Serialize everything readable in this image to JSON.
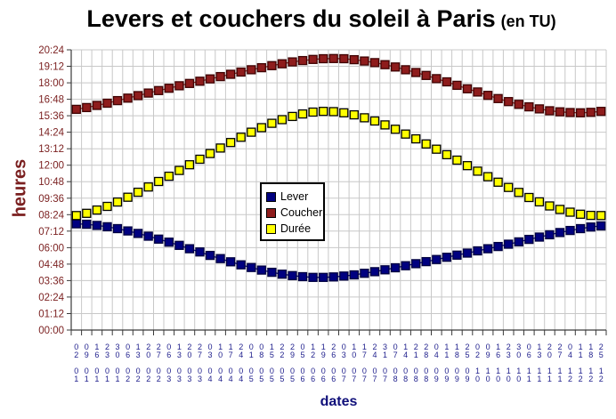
{
  "title": {
    "main": "Levers et couchers du soleil à Paris",
    "suffix": "(en TU)"
  },
  "colors": {
    "background": "#ffffff",
    "grid": "#c8c8c8",
    "axis": "#3a3a3a",
    "y_text": "#7a1f1f",
    "x_text": "#22228e",
    "lever": "#000080",
    "coucher": "#8e1c1c",
    "duree": "#ffff00"
  },
  "chart_data": {
    "type": "scatter",
    "title": "Levers et couchers du soleil à Paris (en TU)",
    "xlabel": "dates",
    "ylabel": "heures",
    "ylim": [
      "00:00",
      "20:24"
    ],
    "grid": true,
    "legend_position": "center",
    "y_ticks": [
      "20:24",
      "19:12",
      "18:00",
      "16:48",
      "15:36",
      "14:24",
      "13:12",
      "12:00",
      "10:48",
      "09:36",
      "08:24",
      "07:12",
      "06:00",
      "04:48",
      "03:36",
      "02:24",
      "01:12",
      "00:00"
    ],
    "categories": [
      "02/01",
      "09/01",
      "16/01",
      "23/01",
      "30/01",
      "06/02",
      "13/02",
      "20/02",
      "27/02",
      "06/03",
      "13/03",
      "20/03",
      "27/03",
      "03/04",
      "10/04",
      "17/04",
      "24/04",
      "01/05",
      "08/05",
      "15/05",
      "22/05",
      "29/05",
      "05/06",
      "12/06",
      "19/06",
      "26/06",
      "03/07",
      "10/07",
      "17/07",
      "24/07",
      "31/07",
      "07/08",
      "14/08",
      "21/08",
      "28/08",
      "04/09",
      "11/09",
      "18/09",
      "25/09",
      "02/10",
      "09/10",
      "16/10",
      "23/10",
      "30/10",
      "06/11",
      "13/11",
      "20/11",
      "27/11",
      "04/12",
      "11/12",
      "18/12",
      "25/12"
    ],
    "series": [
      {
        "name": "Lever",
        "color": "#000080",
        "border": "#000040",
        "line": true,
        "values": [
          "07:44",
          "07:42",
          "07:37",
          "07:31",
          "07:23",
          "07:13",
          "07:02",
          "06:50",
          "06:37",
          "06:24",
          "06:10",
          "05:55",
          "05:41",
          "05:26",
          "05:12",
          "04:58",
          "04:45",
          "04:33",
          "04:22",
          "04:12",
          "04:04",
          "03:58",
          "03:53",
          "03:50",
          "03:50",
          "03:52",
          "03:56",
          "04:01",
          "04:08",
          "04:15",
          "04:23",
          "04:32",
          "04:41",
          "04:50",
          "04:59",
          "05:08",
          "05:18",
          "05:27",
          "05:36",
          "05:46",
          "05:55",
          "06:05",
          "06:15",
          "06:25",
          "06:36",
          "06:46",
          "06:56",
          "07:06",
          "07:15",
          "07:23",
          "07:30",
          "07:35"
        ]
      },
      {
        "name": "Coucher",
        "color": "#8e1c1c",
        "border": "#3f0202",
        "line": true,
        "values": [
          "16:04",
          "16:12",
          "16:21",
          "16:31",
          "16:42",
          "16:53",
          "17:04",
          "17:15",
          "17:26",
          "17:36",
          "17:47",
          "17:57",
          "18:07",
          "18:17",
          "18:27",
          "18:37",
          "18:47",
          "18:57",
          "19:06",
          "19:15",
          "19:23",
          "19:31",
          "19:37",
          "19:42",
          "19:45",
          "19:46",
          "19:45",
          "19:41",
          "19:35",
          "19:28",
          "19:19",
          "19:09",
          "18:57",
          "18:45",
          "18:32",
          "18:18",
          "18:04",
          "17:49",
          "17:34",
          "17:20",
          "17:05",
          "16:51",
          "16:38",
          "16:26",
          "16:15",
          "16:06",
          "15:58",
          "15:53",
          "15:50",
          "15:49",
          "15:51",
          "15:55"
        ]
      },
      {
        "name": "Durée",
        "color": "#ffff00",
        "border": "#000000",
        "line": false,
        "values": [
          "08:20",
          "08:30",
          "08:44",
          "09:00",
          "09:19",
          "09:40",
          "10:02",
          "10:25",
          "10:49",
          "11:12",
          "11:37",
          "12:02",
          "12:26",
          "12:51",
          "13:15",
          "13:39",
          "14:02",
          "14:24",
          "14:44",
          "15:03",
          "15:19",
          "15:33",
          "15:44",
          "15:52",
          "15:55",
          "15:54",
          "15:49",
          "15:40",
          "15:27",
          "15:13",
          "14:56",
          "14:37",
          "14:16",
          "13:55",
          "13:33",
          "13:10",
          "12:46",
          "12:22",
          "11:58",
          "11:34",
          "11:10",
          "10:46",
          "10:23",
          "10:01",
          "09:39",
          "09:20",
          "09:02",
          "08:47",
          "08:35",
          "08:26",
          "08:21",
          "08:20"
        ]
      }
    ]
  }
}
